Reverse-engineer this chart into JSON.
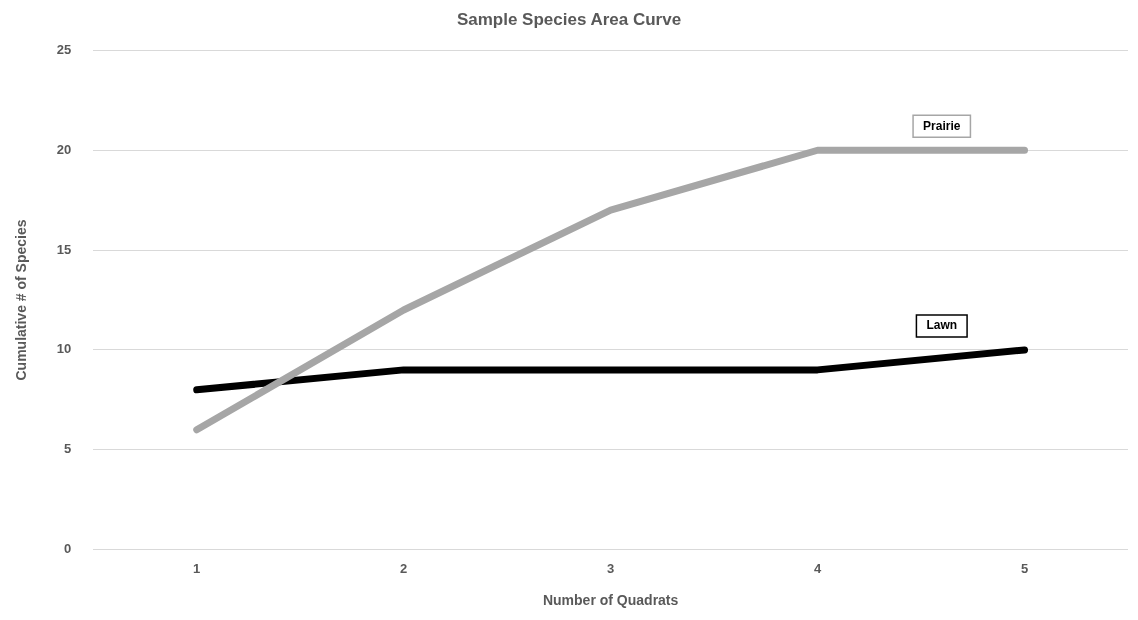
{
  "chart_data": {
    "type": "line",
    "title": "Sample Species Area Curve",
    "xlabel": "Number of Quadrats",
    "ylabel": "Cumulative # of Species",
    "categories": [
      "1",
      "2",
      "3",
      "4",
      "5"
    ],
    "series": [
      {
        "name": "Prairie",
        "color": "#a6a6a6",
        "values": [
          6,
          12,
          17,
          20,
          20
        ]
      },
      {
        "name": "Lawn",
        "color": "#000000",
        "values": [
          8,
          9,
          9,
          9,
          10
        ]
      }
    ],
    "ylim": [
      0,
      25
    ],
    "yticks": [
      0,
      5,
      10,
      15,
      20,
      25
    ],
    "grid": "y",
    "legend": false,
    "marker": "none",
    "line_style": "solid"
  }
}
